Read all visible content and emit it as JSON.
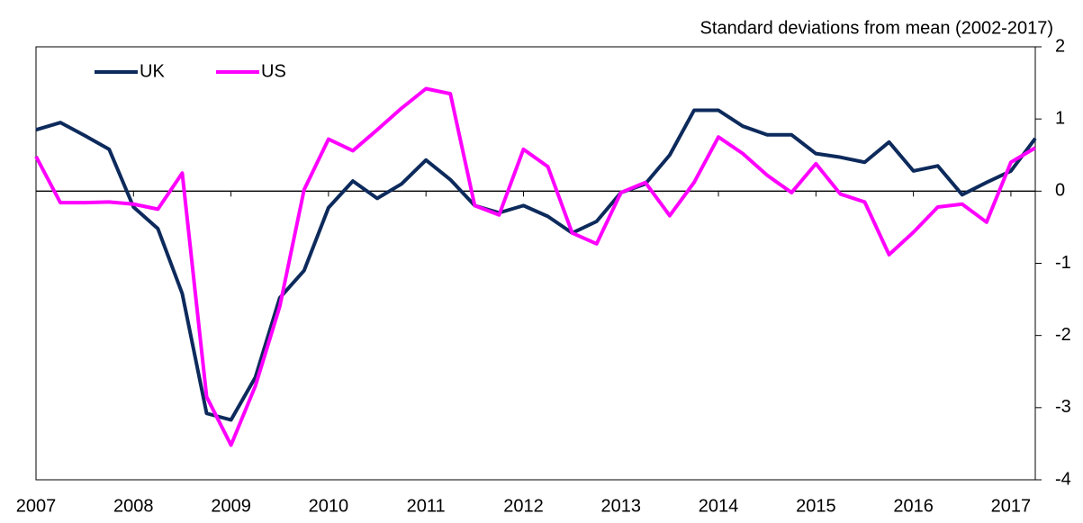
{
  "chart_data": {
    "type": "line",
    "y_label": "Standard deviations from mean (2002-2017)",
    "categories": [
      "2007",
      null,
      null,
      null,
      "2008",
      null,
      null,
      null,
      "2009",
      null,
      null,
      null,
      "2010",
      null,
      null,
      null,
      "2011",
      null,
      null,
      null,
      "2012",
      null,
      null,
      null,
      "2013",
      null,
      null,
      null,
      "2014",
      null,
      null,
      null,
      "2015",
      null,
      null,
      null,
      "2016",
      null,
      null,
      null,
      "2017",
      null
    ],
    "series": [
      {
        "name": "UK",
        "color": "#0d2a5c",
        "values": [
          0.85,
          0.95,
          0.77,
          0.58,
          -0.22,
          -0.52,
          -1.42,
          -3.08,
          -3.17,
          -2.58,
          -1.48,
          -1.1,
          -0.23,
          0.14,
          -0.1,
          0.1,
          0.43,
          0.16,
          -0.2,
          -0.3,
          -0.2,
          -0.35,
          -0.58,
          -0.42,
          -0.02,
          0.1,
          0.5,
          1.12,
          1.12,
          0.9,
          0.78,
          0.78,
          0.52,
          0.47,
          0.4,
          0.68,
          0.28,
          0.35,
          -0.05,
          0.12,
          0.28,
          0.73
        ]
      },
      {
        "name": "US",
        "color": "#ff00ff",
        "values": [
          0.48,
          -0.16,
          -0.16,
          -0.15,
          -0.18,
          -0.25,
          0.25,
          -2.85,
          -3.52,
          -2.7,
          -1.6,
          0.02,
          0.72,
          0.56,
          0.85,
          1.15,
          1.42,
          1.35,
          -0.2,
          -0.33,
          0.58,
          0.34,
          -0.58,
          -0.73,
          -0.02,
          0.12,
          -0.34,
          0.12,
          0.75,
          0.52,
          0.22,
          -0.02,
          0.38,
          -0.04,
          -0.15,
          -0.88,
          -0.57,
          -0.22,
          -0.18,
          -0.43,
          0.4,
          0.6
        ]
      }
    ],
    "ylim": [
      -4,
      2
    ],
    "yticks": [
      2,
      1,
      0,
      -1,
      -2,
      -3,
      -4
    ],
    "grid": false,
    "legend": "upper left"
  }
}
